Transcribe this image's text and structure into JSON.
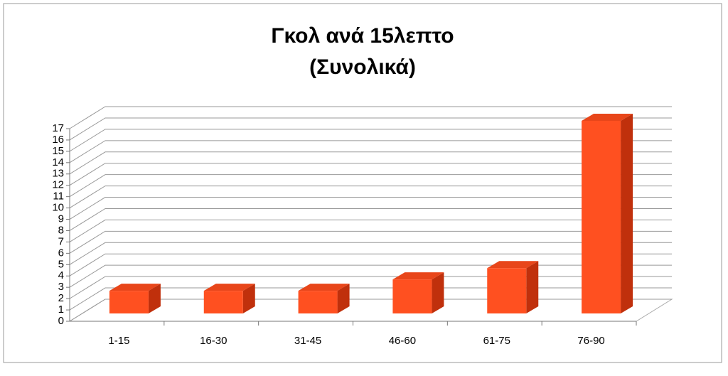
{
  "chart_data": {
    "type": "bar3d",
    "title": "Γκολ ανά 15λεπτο",
    "subtitle": "(Συνολικά)",
    "categories": [
      "1-15",
      "16-30",
      "31-45",
      "46-60",
      "61-75",
      "76-90"
    ],
    "values": [
      2,
      2,
      2,
      3,
      4,
      17
    ],
    "color": "#ff5020",
    "ylim": [
      0,
      17
    ],
    "yticks": [
      0,
      1,
      2,
      3,
      4,
      5,
      6,
      7,
      8,
      9,
      10,
      11,
      12,
      13,
      14,
      15,
      16,
      17
    ],
    "grid": true
  }
}
